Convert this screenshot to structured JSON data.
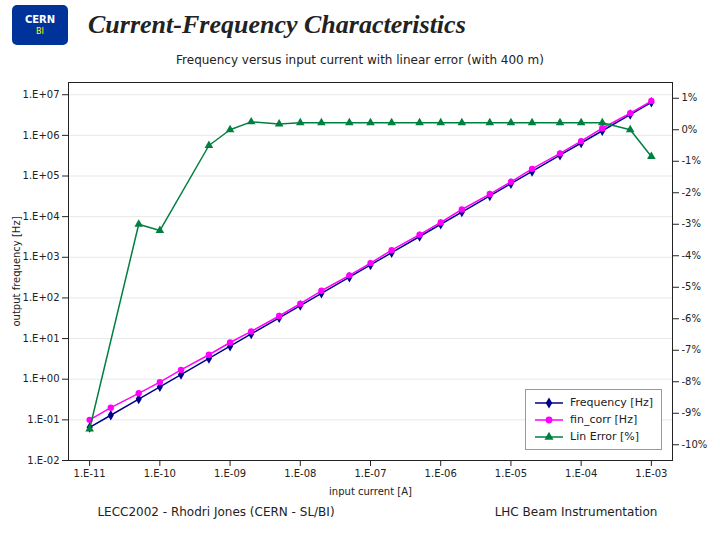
{
  "chart_data": {
    "type": "line",
    "title": "Current-Frequency Characteristics",
    "subtitle": "Frequency versus input current with linear error (with 400 m)",
    "annotations": [
      "CERN",
      "BI",
      "LECC2002  -  Rhodri Jones (CERN - SL/BI)",
      "LHC Beam Instrumentation"
    ],
    "xlabel": "input current [A]",
    "ylabel": "output frequency [Hz]",
    "log": true,
    "grid": true,
    "legend": "lower right",
    "xlim": [
      5e-12,
      0.002
    ],
    "xticks": [
      {
        "value": 1e-11,
        "label": "1.E-11"
      },
      {
        "value": 1e-10,
        "label": "1.E-10"
      },
      {
        "value": 1e-09,
        "label": "1.E-09"
      },
      {
        "value": 1e-08,
        "label": "1.E-08"
      },
      {
        "value": 1e-07,
        "label": "1.E-07"
      },
      {
        "value": 1e-06,
        "label": "1.E-06"
      },
      {
        "value": 1e-05,
        "label": "1.E-05"
      },
      {
        "value": 0.0001,
        "label": "1.E-04"
      },
      {
        "value": 0.001,
        "label": "1.E-03"
      }
    ],
    "ylim": [
      0.01,
      20000000.0
    ],
    "yticks": [
      {
        "value": 0.01,
        "label": "1.E-02"
      },
      {
        "value": 0.1,
        "label": "1.E-01"
      },
      {
        "value": 1,
        "label": "1.E+00"
      },
      {
        "value": 10,
        "label": "1.E+01"
      },
      {
        "value": 100,
        "label": "1.E+02"
      },
      {
        "value": 1000,
        "label": "1.E+03"
      },
      {
        "value": 10000,
        "label": "1.E+04"
      },
      {
        "value": 100000,
        "label": "1.E+05"
      },
      {
        "value": 1000000,
        "label": "1.E+06"
      },
      {
        "value": 10000000,
        "label": "1.E+07"
      }
    ],
    "y2lim": [
      -10.5,
      1.5
    ],
    "y2ticks": [
      {
        "value": 1,
        "label": "1%"
      },
      {
        "value": 0,
        "label": "0%"
      },
      {
        "value": -1,
        "label": "-1%"
      },
      {
        "value": -2,
        "label": "-2%"
      },
      {
        "value": -3,
        "label": "-3%"
      },
      {
        "value": -4,
        "label": "-4%"
      },
      {
        "value": -5,
        "label": "-5%"
      },
      {
        "value": -6,
        "label": "-6%"
      },
      {
        "value": -7,
        "label": "-7%"
      },
      {
        "value": -8,
        "label": "-8%"
      },
      {
        "value": -9,
        "label": "-9%"
      },
      {
        "value": -10,
        "label": "-10%"
      }
    ],
    "series": [
      {
        "name": "Frequency [Hz]",
        "color": "#00008B",
        "marker": "diamond",
        "line_style": "solid",
        "x": [
          1e-11,
          2e-11,
          5e-11,
          1e-10,
          2e-10,
          5e-10,
          1e-09,
          2e-09,
          5e-09,
          1e-08,
          2e-08,
          5e-08,
          1e-07,
          2e-07,
          5e-07,
          1e-06,
          2e-06,
          5e-06,
          1e-05,
          2e-05,
          5e-05,
          0.0001,
          0.0002,
          0.0005,
          0.001
        ],
        "values": [
          0.065,
          0.13,
          0.325,
          0.65,
          1.3,
          3.25,
          6.5,
          13,
          32.5,
          65,
          130,
          325,
          650,
          1300,
          3250,
          6500,
          13000,
          32500,
          65000,
          130000,
          325000,
          650000,
          1300000,
          3250000,
          6500000
        ]
      },
      {
        "name": "fin_corr [Hz]",
        "color": "#FF00FF",
        "marker": "circle",
        "line_style": "solid",
        "x": [
          1e-11,
          2e-11,
          5e-11,
          1e-10,
          2e-10,
          5e-10,
          1e-09,
          2e-09,
          5e-09,
          1e-08,
          2e-08,
          5e-08,
          1e-07,
          2e-07,
          5e-07,
          1e-06,
          2e-06,
          5e-06,
          1e-05,
          2e-05,
          5e-05,
          0.0001,
          0.0002,
          0.0005,
          0.001
        ],
        "values": [
          0.1,
          0.2,
          0.45,
          0.85,
          1.7,
          4.0,
          8.0,
          15,
          36,
          72,
          150,
          360,
          720,
          1500,
          3600,
          7200,
          15000,
          36000,
          72000,
          150000,
          360000,
          720000,
          1500000,
          3500000,
          7000000
        ]
      },
      {
        "name": "Lin Error [%]",
        "color": "#008040",
        "marker": "triangle",
        "line_style": "solid",
        "axis": "y2",
        "x": [
          1e-11,
          5e-11,
          1e-10,
          5e-10,
          1e-09,
          2e-09,
          5e-09,
          1e-08,
          2e-08,
          5e-08,
          1e-07,
          2e-07,
          5e-07,
          1e-06,
          2e-06,
          5e-06,
          1e-05,
          2e-05,
          5e-05,
          0.0001,
          0.0002,
          0.0005,
          0.001
        ],
        "values": [
          -9.5,
          -3.0,
          -3.2,
          -0.5,
          0.0,
          0.25,
          0.18,
          0.22,
          0.22,
          0.22,
          0.22,
          0.22,
          0.22,
          0.22,
          0.22,
          0.22,
          0.22,
          0.22,
          0.22,
          0.22,
          0.22,
          0.0,
          -0.85
        ]
      }
    ]
  }
}
